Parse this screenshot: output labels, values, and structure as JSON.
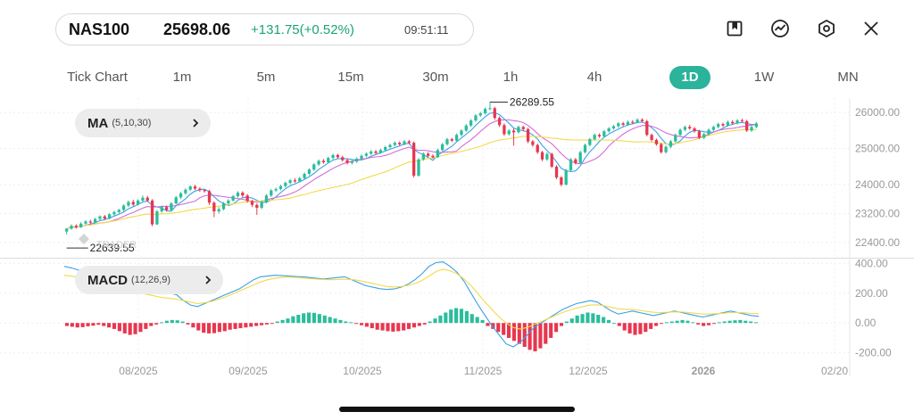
{
  "quote": {
    "symbol": "NAS100",
    "price": "25698.06",
    "change": "+131.75(+0.52%)",
    "time": "09:51:11"
  },
  "toolbar_icons": [
    "bookmark-icon",
    "indicator-icon",
    "settings-icon",
    "close-icon"
  ],
  "timeframes": [
    {
      "label": "Tick Chart",
      "active": false
    },
    {
      "label": "1m",
      "active": false
    },
    {
      "label": "5m",
      "active": false
    },
    {
      "label": "15m",
      "active": false
    },
    {
      "label": "30m",
      "active": false
    },
    {
      "label": "1h",
      "active": false
    },
    {
      "label": "4h",
      "active": false
    },
    {
      "label": "1D",
      "active": true
    },
    {
      "label": "1W",
      "active": false
    },
    {
      "label": "MN",
      "active": false
    }
  ],
  "main_indicator": {
    "name": "MA",
    "params": "(5,10,30)"
  },
  "sub_indicator": {
    "name": "MACD",
    "params": "(12,26,9)"
  },
  "price_axis": [
    "26000.00",
    "25000.00",
    "24000.00",
    "23200.00",
    "22400.00"
  ],
  "macd_axis": [
    "400.00",
    "200.00",
    "0.00",
    "-200.00"
  ],
  "date_axis": [
    "08/2025",
    "09/2025",
    "10/2025",
    "11/2025",
    "12/2025",
    "2026",
    "02/20"
  ],
  "annotations": {
    "high": "26289.55",
    "low": "22639.55"
  },
  "watermark": "TRADER",
  "colors": {
    "up": "#2bbd9a",
    "down": "#e8364f",
    "ma5": "#3aa0e8",
    "ma10": "#d56bd9",
    "ma30": "#f3d94a",
    "accent": "#2bb39b"
  },
  "chart_data": {
    "type": "candlestick",
    "price_range": [
      22000,
      26400
    ],
    "macd_range": [
      -250,
      420
    ],
    "candles": [
      [
        22700,
        22780,
        22620,
        22790
      ],
      [
        22780,
        22860,
        22750,
        22900
      ],
      [
        22860,
        22820,
        22780,
        22900
      ],
      [
        22820,
        22920,
        22800,
        22960
      ],
      [
        22920,
        22980,
        22890,
        23020
      ],
      [
        22980,
        22950,
        22900,
        23030
      ],
      [
        22950,
        23050,
        22930,
        23080
      ],
      [
        23050,
        23120,
        23010,
        23150
      ],
      [
        23120,
        23060,
        23020,
        23160
      ],
      [
        23060,
        23180,
        23040,
        23210
      ],
      [
        23180,
        23240,
        23140,
        23280
      ],
      [
        23240,
        23300,
        23200,
        23330
      ],
      [
        23300,
        23420,
        23260,
        23460
      ],
      [
        23420,
        23520,
        23380,
        23560
      ],
      [
        23520,
        23450,
        23400,
        23580
      ],
      [
        23450,
        23560,
        23420,
        23600
      ],
      [
        23560,
        23640,
        23520,
        23700
      ],
      [
        23640,
        23560,
        23520,
        23690
      ],
      [
        23560,
        22900,
        22850,
        23600
      ],
      [
        22900,
        23260,
        22880,
        23300
      ],
      [
        23260,
        23380,
        23220,
        23420
      ],
      [
        23380,
        23300,
        23250,
        23420
      ],
      [
        23300,
        23480,
        23270,
        23520
      ],
      [
        23480,
        23650,
        23450,
        23690
      ],
      [
        23650,
        23760,
        23600,
        23800
      ],
      [
        23760,
        23860,
        23720,
        23900
      ],
      [
        23860,
        23950,
        23820,
        23990
      ],
      [
        23950,
        23890,
        23850,
        24000
      ],
      [
        23890,
        23850,
        23800,
        23930
      ],
      [
        23850,
        23820,
        23780,
        23880
      ],
      [
        23820,
        23500,
        23440,
        23860
      ],
      [
        23500,
        23260,
        23100,
        23540
      ],
      [
        23260,
        23320,
        23200,
        23380
      ],
      [
        23320,
        23480,
        23290,
        23520
      ],
      [
        23480,
        23560,
        23440,
        23600
      ],
      [
        23560,
        23680,
        23530,
        23720
      ],
      [
        23680,
        23780,
        23640,
        23820
      ],
      [
        23780,
        23700,
        23650,
        23820
      ],
      [
        23700,
        23550,
        23500,
        23740
      ],
      [
        23550,
        23440,
        23380,
        23580
      ],
      [
        23440,
        23360,
        23160,
        23480
      ],
      [
        23360,
        23520,
        23320,
        23560
      ],
      [
        23520,
        23700,
        23480,
        23740
      ],
      [
        23700,
        23840,
        23660,
        23880
      ],
      [
        23840,
        23880,
        23800,
        23920
      ],
      [
        23880,
        23960,
        23840,
        24000
      ],
      [
        23960,
        24050,
        23920,
        24090
      ],
      [
        24050,
        24120,
        24010,
        24160
      ],
      [
        24120,
        24090,
        24050,
        24180
      ],
      [
        24090,
        24180,
        24060,
        24220
      ],
      [
        24180,
        24300,
        24150,
        24340
      ],
      [
        24300,
        24420,
        24260,
        24460
      ],
      [
        24420,
        24560,
        24380,
        24600
      ],
      [
        24560,
        24660,
        24520,
        24700
      ],
      [
        24660,
        24620,
        24580,
        24710
      ],
      [
        24620,
        24740,
        24600,
        24780
      ],
      [
        24740,
        24820,
        24700,
        24860
      ],
      [
        24820,
        24760,
        24720,
        24860
      ],
      [
        24760,
        24680,
        24640,
        24800
      ],
      [
        24680,
        24600,
        24560,
        24720
      ],
      [
        24600,
        24640,
        24560,
        24680
      ],
      [
        24640,
        24720,
        24600,
        24760
      ],
      [
        24720,
        24800,
        24680,
        24840
      ],
      [
        24800,
        24860,
        24760,
        24900
      ],
      [
        24860,
        24920,
        24820,
        24960
      ],
      [
        24920,
        24880,
        24840,
        24960
      ],
      [
        24880,
        24960,
        24850,
        25000
      ],
      [
        24960,
        25040,
        24920,
        25080
      ],
      [
        25040,
        25100,
        25000,
        25140
      ],
      [
        25100,
        25160,
        25060,
        25200
      ],
      [
        25160,
        25120,
        25080,
        25200
      ],
      [
        25120,
        25200,
        25090,
        25240
      ],
      [
        25200,
        25160,
        25120,
        25240
      ],
      [
        25160,
        24250,
        24200,
        25200
      ],
      [
        24250,
        24700,
        24220,
        24740
      ],
      [
        24700,
        24860,
        24660,
        24900
      ],
      [
        24860,
        24800,
        24760,
        24900
      ],
      [
        24800,
        24760,
        24720,
        24840
      ],
      [
        24760,
        24960,
        24740,
        25000
      ],
      [
        24960,
        25120,
        24920,
        25160
      ],
      [
        25120,
        25260,
        25080,
        25300
      ],
      [
        25260,
        25220,
        25180,
        25300
      ],
      [
        25220,
        25380,
        25190,
        25420
      ],
      [
        25380,
        25500,
        25340,
        25540
      ],
      [
        25500,
        25640,
        25460,
        25680
      ],
      [
        25640,
        25780,
        25600,
        25820
      ],
      [
        25780,
        25920,
        25740,
        25960
      ],
      [
        25920,
        25980,
        25880,
        26020
      ],
      [
        25980,
        26100,
        25940,
        26140
      ],
      [
        26100,
        26120,
        26060,
        26289
      ],
      [
        26120,
        25850,
        25800,
        26160
      ],
      [
        25850,
        25650,
        25600,
        25890
      ],
      [
        25650,
        25400,
        25350,
        25700
      ],
      [
        25400,
        25500,
        25360,
        25540
      ],
      [
        25500,
        25450,
        25080,
        25560
      ],
      [
        25450,
        25600,
        25420,
        25640
      ],
      [
        25600,
        25540,
        25480,
        25640
      ],
      [
        25540,
        25200,
        25150,
        25580
      ],
      [
        25200,
        25100,
        25050,
        25240
      ],
      [
        25100,
        24900,
        24850,
        25140
      ],
      [
        24900,
        24700,
        24650,
        24940
      ],
      [
        24700,
        24850,
        24660,
        24900
      ],
      [
        24850,
        24500,
        24460,
        24890
      ],
      [
        24500,
        24200,
        24150,
        24540
      ],
      [
        24200,
        24000,
        23950,
        24240
      ],
      [
        24000,
        24400,
        23980,
        24440
      ],
      [
        24400,
        24700,
        24360,
        24740
      ],
      [
        24700,
        24600,
        24560,
        24740
      ],
      [
        24600,
        24900,
        24580,
        24940
      ],
      [
        24900,
        25100,
        24860,
        25140
      ],
      [
        25100,
        25260,
        25060,
        25300
      ],
      [
        25260,
        25380,
        25220,
        25420
      ],
      [
        25380,
        25340,
        25300,
        25420
      ],
      [
        25340,
        25480,
        25310,
        25520
      ],
      [
        25480,
        25560,
        25440,
        25600
      ],
      [
        25560,
        25620,
        25520,
        25660
      ],
      [
        25620,
        25700,
        25580,
        25740
      ],
      [
        25700,
        25660,
        25620,
        25740
      ],
      [
        25660,
        25740,
        25630,
        25780
      ],
      [
        25740,
        25720,
        25680,
        25790
      ],
      [
        25720,
        25800,
        25700,
        25840
      ],
      [
        25800,
        25760,
        25720,
        25840
      ],
      [
        25760,
        25380,
        25340,
        25800
      ],
      [
        25380,
        25240,
        25200,
        25420
      ],
      [
        25240,
        25120,
        25080,
        25280
      ],
      [
        25120,
        24900,
        24860,
        25160
      ],
      [
        24900,
        25050,
        24860,
        25090
      ],
      [
        25050,
        25200,
        25010,
        25240
      ],
      [
        25200,
        25380,
        25160,
        25420
      ],
      [
        25380,
        25520,
        25340,
        25560
      ],
      [
        25520,
        25600,
        25480,
        25640
      ],
      [
        25600,
        25560,
        25520,
        25660
      ],
      [
        25560,
        25480,
        25440,
        25600
      ],
      [
        25480,
        25300,
        25260,
        25520
      ],
      [
        25300,
        25400,
        25260,
        25440
      ],
      [
        25400,
        25520,
        25360,
        25560
      ],
      [
        25520,
        25600,
        25480,
        25640
      ],
      [
        25600,
        25680,
        25560,
        25720
      ],
      [
        25680,
        25640,
        25600,
        25720
      ],
      [
        25640,
        25740,
        25610,
        25780
      ],
      [
        25740,
        25700,
        25660,
        25790
      ],
      [
        25700,
        25780,
        25670,
        25820
      ],
      [
        25780,
        25760,
        25720,
        25830
      ],
      [
        25760,
        25500,
        25460,
        25800
      ],
      [
        25500,
        25600,
        25460,
        25640
      ],
      [
        25600,
        25698,
        25560,
        25740
      ]
    ],
    "macd_hist": [
      -20,
      -25,
      -30,
      -28,
      -22,
      -18,
      -12,
      -20,
      -30,
      -40,
      -55,
      -70,
      -80,
      -75,
      -60,
      -40,
      -20,
      -10,
      5,
      15,
      20,
      18,
      10,
      -10,
      -30,
      -50,
      -65,
      -70,
      -68,
      -60,
      -55,
      -45,
      -40,
      -35,
      -30,
      -25,
      -20,
      -15,
      -10,
      -5,
      10,
      20,
      30,
      45,
      55,
      65,
      70,
      68,
      60,
      50,
      40,
      30,
      20,
      10,
      5,
      -5,
      -15,
      -25,
      -35,
      -45,
      -50,
      -55,
      -58,
      -55,
      -50,
      -40,
      -30,
      -20,
      -10,
      10,
      30,
      50,
      70,
      90,
      100,
      95,
      80,
      60,
      40,
      20,
      -20,
      -40,
      -60,
      -80,
      -100,
      -120,
      -140,
      -160,
      -180,
      -190,
      -170,
      -140,
      -100,
      -60,
      -20,
      10,
      30,
      50,
      60,
      70,
      65,
      55,
      40,
      20,
      0,
      -20,
      -50,
      -70,
      -80,
      -75,
      -60,
      -40,
      -20,
      -5,
      5,
      10,
      15,
      20,
      15,
      5,
      -10,
      -20,
      -15,
      -5,
      5,
      10,
      15,
      18,
      20,
      15,
      10,
      5
    ],
    "macd_line": [
      380,
      370,
      355,
      340,
      320,
      300,
      290,
      300,
      310,
      300,
      270,
      240,
      220,
      200,
      195,
      200,
      190,
      150,
      120,
      110,
      130,
      150,
      170,
      190,
      210,
      230,
      260,
      290,
      310,
      315,
      320,
      318,
      315,
      312,
      310,
      305,
      300,
      295,
      300,
      305,
      310,
      290,
      270,
      250,
      240,
      230,
      225,
      228,
      240,
      260,
      290,
      330,
      380,
      405,
      410,
      380,
      340,
      280,
      200,
      120,
      50,
      -20,
      -80,
      -140,
      -160,
      -130,
      -80,
      -30,
      0,
      30,
      60,
      90,
      110,
      130,
      140,
      150,
      140,
      110,
      80,
      60,
      70,
      80,
      70,
      60,
      50,
      60,
      70,
      80,
      70,
      60,
      50,
      40,
      50,
      60,
      70,
      80,
      70,
      60,
      50,
      45
    ],
    "signal_line": [
      320,
      315,
      305,
      295,
      285,
      270,
      255,
      245,
      235,
      225,
      210,
      200,
      190,
      180,
      170,
      165,
      160,
      150,
      140,
      130,
      135,
      145,
      160,
      175,
      195,
      215,
      235,
      255,
      275,
      290,
      300,
      305,
      308,
      306,
      302,
      298,
      295,
      292,
      290,
      292,
      294,
      292,
      285,
      275,
      265,
      255,
      245,
      242,
      245,
      252,
      265,
      285,
      315,
      345,
      360,
      350,
      330,
      295,
      250,
      195,
      140,
      90,
      40,
      0,
      -30,
      -40,
      -30,
      -10,
      10,
      30,
      50,
      70,
      85,
      100,
      110,
      120,
      122,
      115,
      105,
      95,
      92,
      90,
      85,
      78,
      72,
      70,
      72,
      75,
      74,
      70,
      65,
      60,
      60,
      62,
      65,
      70,
      70,
      68,
      64,
      62
    ]
  }
}
